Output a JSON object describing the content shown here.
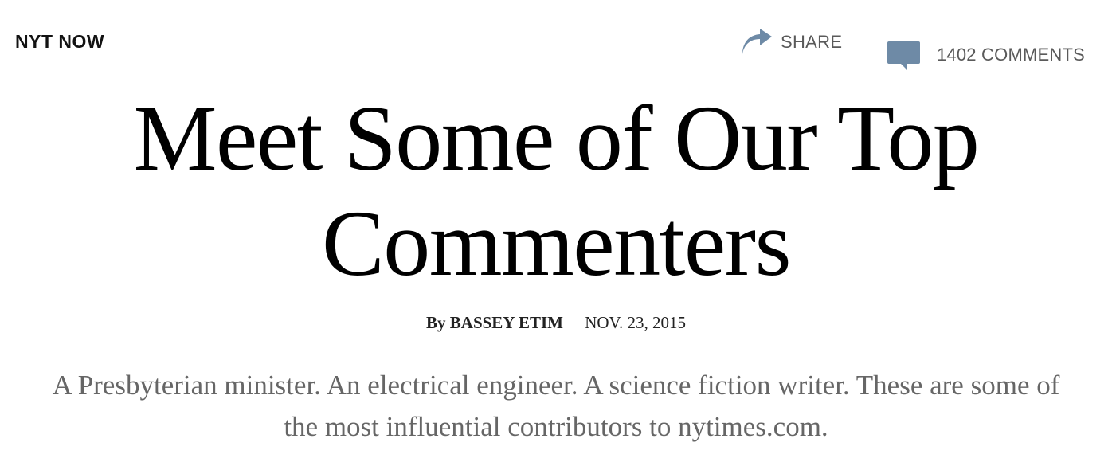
{
  "header": {
    "brand": "NYT NOW",
    "share_label": "SHARE",
    "comments_label": "1402 COMMENTS"
  },
  "icons": {
    "share": "share-arrow-icon",
    "comments": "comment-bubble-icon"
  },
  "colors": {
    "icon_blue": "#6e8aa6",
    "headline": "#000000",
    "summary": "#666666"
  },
  "article": {
    "headline": "Meet Some of Our Top Commenters",
    "byline_prefix": "By",
    "author": "BASSEY ETIM",
    "date": "NOV. 23, 2015",
    "summary": "A Presbyterian minister. An electrical engineer. A science fiction writer. These are some of the most influential contributors to nytimes.com."
  }
}
